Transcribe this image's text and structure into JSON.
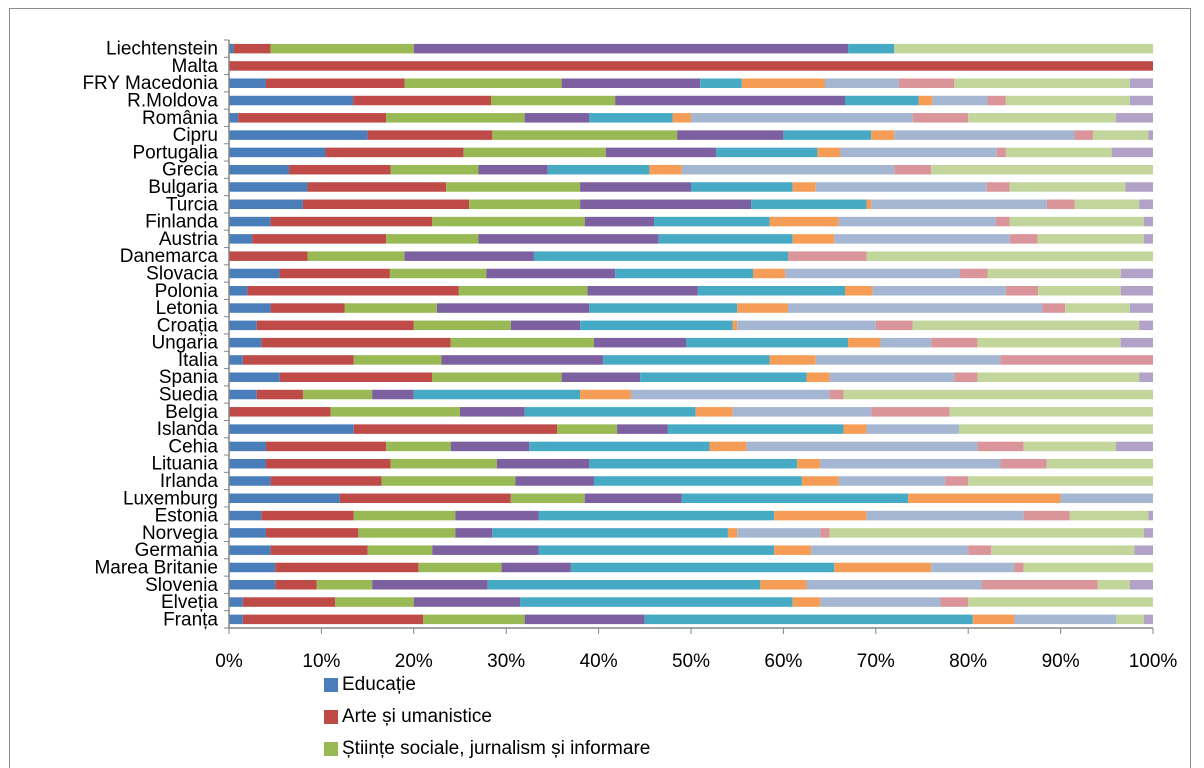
{
  "chart_data": {
    "type": "bar",
    "orientation": "horizontal",
    "stacked": "100%",
    "xlim": [
      0,
      100
    ],
    "x_ticks": [
      "0%",
      "10%",
      "20%",
      "30%",
      "40%",
      "50%",
      "60%",
      "70%",
      "80%",
      "90%",
      "100%"
    ],
    "grid": false,
    "legend_position": "bottom",
    "categories": [
      "Liechtenstein",
      "Malta",
      "FRY Macedonia",
      "R.Moldova",
      "România",
      "Cipru",
      "Portugalia",
      "Grecia",
      "Bulgaria",
      "Turcia",
      "Finlanda",
      "Austria",
      "Danemarca",
      "Slovacia",
      "Polonia",
      "Letonia",
      "Croația",
      "Ungaria",
      "Italia",
      "Spania",
      "Suedia",
      "Belgia",
      "Islanda",
      "Cehia",
      "Lituania",
      "Irlanda",
      "Luxemburg",
      "Estonia",
      "Norvegia",
      "Germania",
      "Marea Britanie",
      "Slovenia",
      "Elveția",
      "Franța"
    ],
    "segment_colors": [
      "#4a7ebb",
      "#be4b48",
      "#98b954",
      "#7d60a0",
      "#46aac5",
      "#f59d56",
      "#a5b6d3",
      "#d9959a",
      "#c2d69b",
      "#b2a2c7"
    ],
    "legend": [
      {
        "name": "Educație",
        "color": "#4a7ebb"
      },
      {
        "name": "Arte și umanistice",
        "color": "#be4b48"
      },
      {
        "name": "Științe sociale, jurnalism și informare",
        "color": "#98b954"
      }
    ],
    "rows": [
      [
        0.5,
        4,
        15.5,
        47,
        5,
        0,
        0,
        0,
        28,
        0
      ],
      [
        0,
        100,
        0,
        0,
        0,
        0,
        0,
        0,
        0,
        0
      ],
      [
        4,
        15,
        17,
        15,
        4.5,
        9,
        8,
        6,
        19,
        2.5
      ],
      [
        13.5,
        15,
        13.5,
        25,
        8,
        1.5,
        6,
        2,
        13.5,
        2.5
      ],
      [
        1,
        16,
        15,
        7,
        9,
        2,
        24,
        6,
        16,
        4
      ],
      [
        15,
        13.5,
        20,
        11.5,
        9.5,
        2.5,
        19.5,
        2,
        6,
        0.5
      ],
      [
        10.5,
        15,
        15.5,
        12,
        11,
        2.5,
        17,
        1,
        11.5,
        4.5
      ],
      [
        6.5,
        11,
        9.5,
        7.5,
        11,
        3.5,
        23,
        4,
        24,
        0
      ],
      [
        8.5,
        15,
        14.5,
        12,
        11,
        2.5,
        18.5,
        2.5,
        12.5,
        3
      ],
      [
        8,
        18,
        12,
        18.5,
        12.5,
        0.5,
        19,
        3,
        7,
        1.5
      ],
      [
        4.5,
        17.5,
        16.5,
        7.5,
        12.5,
        7.5,
        17,
        1.5,
        14.5,
        1
      ],
      [
        2.5,
        14.5,
        10,
        19.5,
        14.5,
        4.5,
        19,
        3,
        11.5,
        1
      ],
      [
        0,
        8.5,
        10.5,
        14,
        27.5,
        0,
        0,
        8.5,
        31,
        0
      ],
      [
        5.5,
        12,
        10.5,
        14,
        15,
        3.5,
        19,
        3,
        14.5,
        3.5
      ],
      [
        2,
        23,
        14,
        12,
        16,
        3,
        14.5,
        3.5,
        9,
        3.5
      ],
      [
        4.5,
        8,
        10,
        16.5,
        16,
        5.5,
        27.5,
        2.5,
        7,
        2.5
      ],
      [
        3,
        17,
        10.5,
        7.5,
        16.5,
        0.5,
        15,
        4,
        24.5,
        1.5
      ],
      [
        3.5,
        20.5,
        15.5,
        10,
        17.5,
        3.5,
        5.5,
        5,
        15.5,
        3.5
      ],
      [
        1.5,
        12,
        9.5,
        17.5,
        18,
        5,
        20,
        16.5,
        0,
        0
      ],
      [
        5.5,
        16.5,
        14,
        8.5,
        18,
        2.5,
        13.5,
        2.5,
        17.5,
        1.5
      ],
      [
        3,
        5,
        7.5,
        4.5,
        18,
        5.5,
        21.5,
        1.5,
        33.5,
        0
      ],
      [
        0,
        11,
        14,
        7,
        18.5,
        4,
        15,
        8.5,
        22,
        0
      ],
      [
        13.5,
        22,
        6.5,
        5.5,
        19,
        2.5,
        10,
        0,
        21,
        0
      ],
      [
        4,
        13,
        7,
        8.5,
        19.5,
        4,
        25,
        5,
        10,
        4
      ],
      [
        4,
        13.5,
        11.5,
        10,
        22.5,
        2.5,
        19.5,
        5,
        11.5,
        0
      ],
      [
        4.5,
        12,
        14.5,
        8.5,
        22.5,
        4,
        11.5,
        2.5,
        20,
        0
      ],
      [
        12,
        18.5,
        8,
        10.5,
        24.5,
        16.5,
        10,
        0,
        0,
        0
      ],
      [
        3.5,
        10,
        11,
        9,
        25.5,
        10,
        17,
        5,
        8.5,
        0.5
      ],
      [
        4,
        10,
        10.5,
        4,
        25.5,
        1,
        9,
        1,
        34,
        1
      ],
      [
        4.5,
        10.5,
        7,
        11.5,
        25.5,
        4,
        17,
        2.5,
        15.5,
        2
      ],
      [
        5,
        15.5,
        9,
        7.5,
        28.5,
        10.5,
        9,
        1,
        14,
        0
      ],
      [
        5,
        4.5,
        6,
        12.5,
        29.5,
        5,
        19,
        12.5,
        3.5,
        2.5
      ],
      [
        1.5,
        10,
        8.5,
        11.5,
        29.5,
        3,
        13,
        3,
        20,
        0
      ],
      [
        1.5,
        19.5,
        11,
        13,
        35.5,
        4.5,
        11,
        0,
        3,
        1
      ]
    ]
  }
}
